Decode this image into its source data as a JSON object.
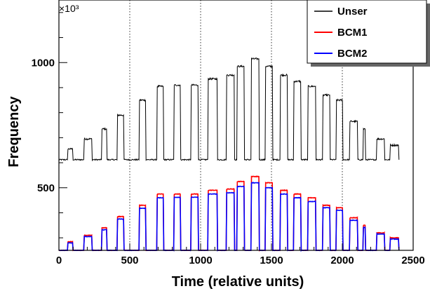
{
  "chart_data": {
    "type": "line",
    "title": "",
    "xlabel": "Time (relative units)",
    "ylabel": "Frequency",
    "y_multiplier": "×10³",
    "xlim": [
      0,
      2500
    ],
    "ylim": [
      250,
      1250
    ],
    "x_ticks": [
      0,
      500,
      1000,
      1500,
      2000,
      2500
    ],
    "x_tick_labels": [
      "0",
      "500",
      "1000",
      "1500",
      "2000",
      "2500"
    ],
    "y_ticks": [
      500,
      1000
    ],
    "y_tick_labels": [
      "500",
      "1000"
    ],
    "vertical_reference_lines": [
      500,
      1000,
      1500,
      2000
    ],
    "baseline_levels": {
      "Unser": 612,
      "BCM1": 250,
      "BCM2": 250
    },
    "plateaus": [
      {
        "start": 60,
        "end": 100,
        "Unser": 655,
        "BCM1": 285,
        "BCM2": 280
      },
      {
        "start": 175,
        "end": 235,
        "Unser": 695,
        "BCM1": 310,
        "BCM2": 305
      },
      {
        "start": 300,
        "end": 340,
        "Unser": 735,
        "BCM1": 340,
        "BCM2": 332
      },
      {
        "start": 410,
        "end": 460,
        "Unser": 790,
        "BCM1": 385,
        "BCM2": 375
      },
      {
        "start": 565,
        "end": 615,
        "Unser": 850,
        "BCM1": 430,
        "BCM2": 418
      },
      {
        "start": 690,
        "end": 740,
        "Unser": 905,
        "BCM1": 475,
        "BCM2": 460
      },
      {
        "start": 810,
        "end": 860,
        "Unser": 910,
        "BCM1": 475,
        "BCM2": 462
      },
      {
        "start": 930,
        "end": 985,
        "Unser": 910,
        "BCM1": 475,
        "BCM2": 462
      },
      {
        "start": 1050,
        "end": 1120,
        "Unser": 935,
        "BCM1": 490,
        "BCM2": 475
      },
      {
        "start": 1180,
        "end": 1240,
        "Unser": 950,
        "BCM1": 495,
        "BCM2": 480
      },
      {
        "start": 1255,
        "end": 1310,
        "Unser": 985,
        "BCM1": 525,
        "BCM2": 505
      },
      {
        "start": 1355,
        "end": 1415,
        "Unser": 1015,
        "BCM1": 545,
        "BCM2": 520
      },
      {
        "start": 1455,
        "end": 1510,
        "Unser": 985,
        "BCM1": 520,
        "BCM2": 500
      },
      {
        "start": 1560,
        "end": 1615,
        "Unser": 950,
        "BCM1": 490,
        "BCM2": 475
      },
      {
        "start": 1655,
        "end": 1710,
        "Unser": 925,
        "BCM1": 475,
        "BCM2": 460
      },
      {
        "start": 1755,
        "end": 1815,
        "Unser": 905,
        "BCM1": 460,
        "BCM2": 445
      },
      {
        "start": 1860,
        "end": 1915,
        "Unser": 870,
        "BCM1": 430,
        "BCM2": 420
      },
      {
        "start": 1955,
        "end": 2005,
        "Unser": 850,
        "BCM1": 420,
        "BCM2": 410
      },
      {
        "start": 2050,
        "end": 2110,
        "Unser": 765,
        "BCM1": 380,
        "BCM2": 370
      },
      {
        "start": 2145,
        "end": 2165,
        "Unser": 735,
        "BCM1": 350,
        "BCM2": 342
      },
      {
        "start": 2240,
        "end": 2300,
        "Unser": 695,
        "BCM1": 320,
        "BCM2": 315
      },
      {
        "start": 2335,
        "end": 2400,
        "Unser": 670,
        "BCM1": 300,
        "BCM2": 295
      }
    ],
    "x_end": 2400,
    "series": [
      {
        "name": "Unser",
        "color": "#000000"
      },
      {
        "name": "BCM1",
        "color": "#ff0000"
      },
      {
        "name": "BCM2",
        "color": "#0000ff"
      }
    ],
    "legend_position": "top-right"
  }
}
